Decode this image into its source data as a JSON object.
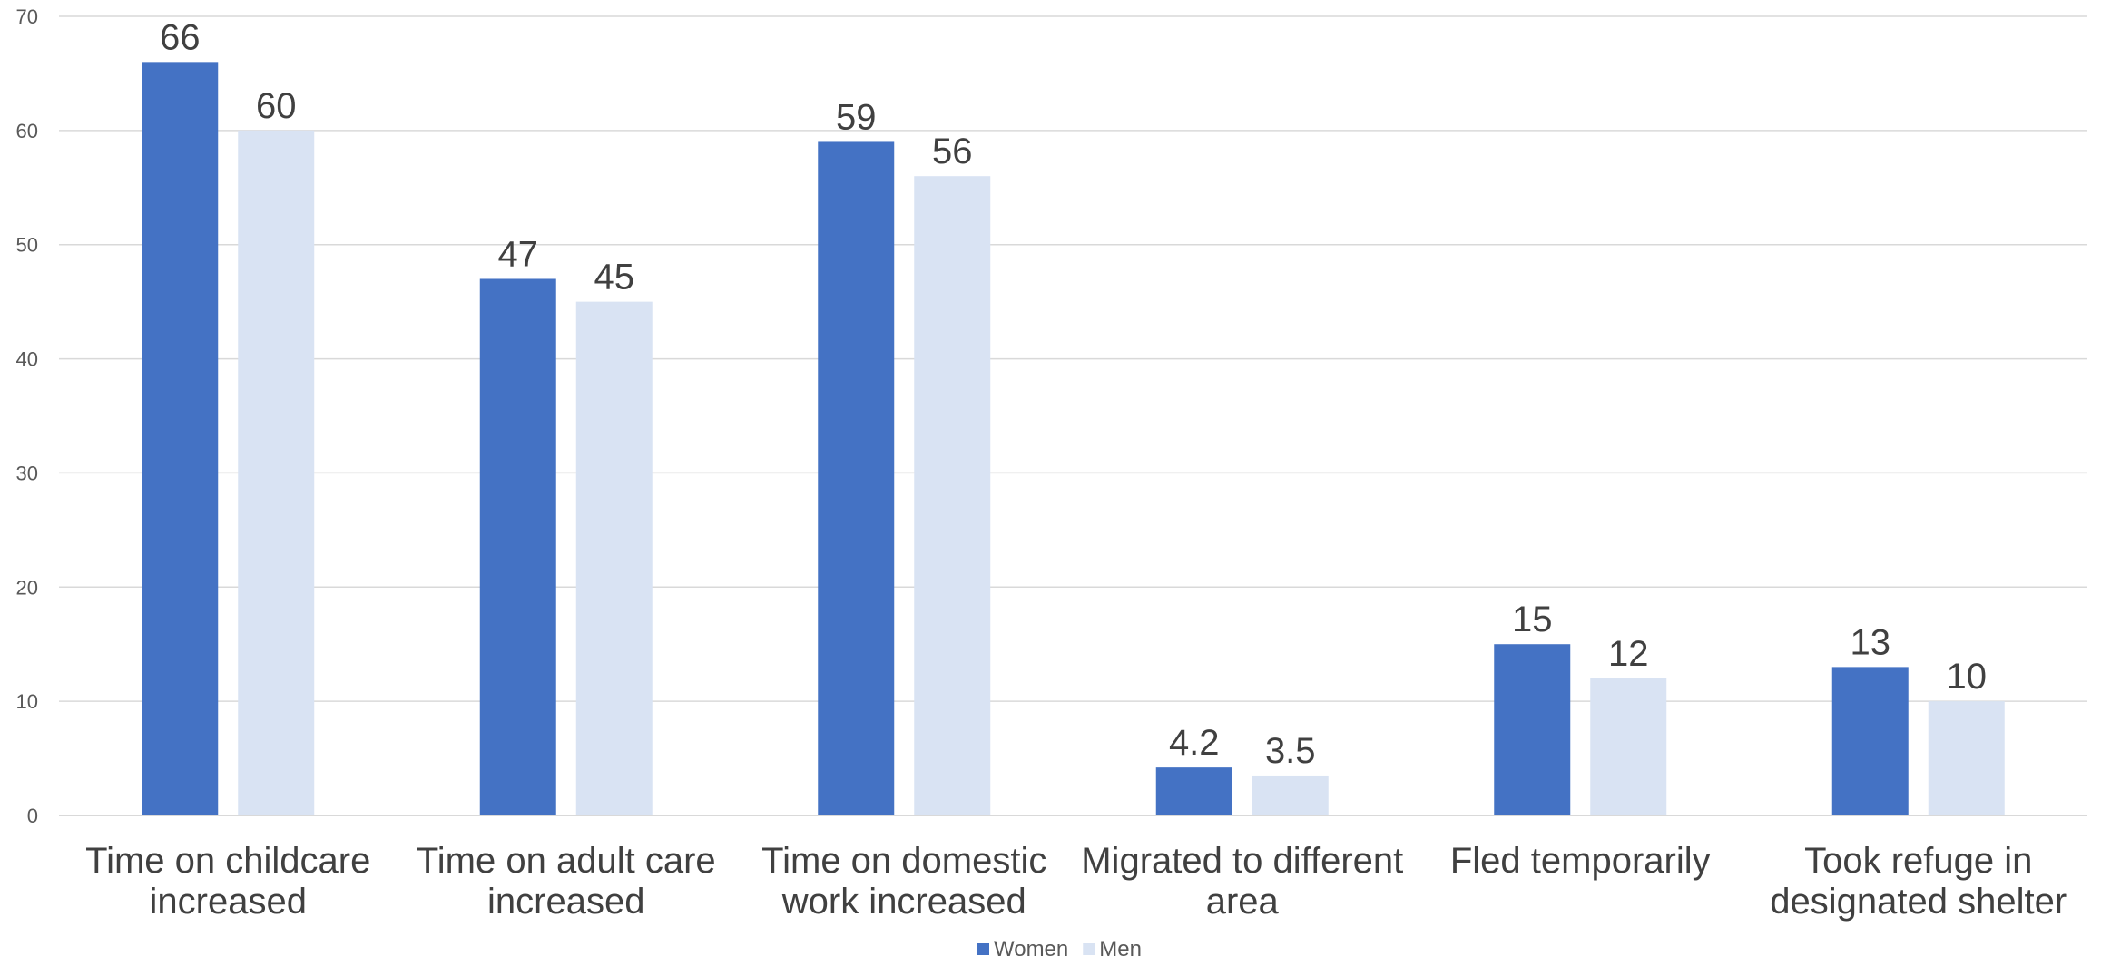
{
  "chart_data": {
    "type": "bar",
    "categories": [
      [
        "Time on childcare",
        "increased"
      ],
      [
        "Time on adult care",
        "increased"
      ],
      [
        "Time on domestic",
        "work increased"
      ],
      [
        "Migrated to different",
        "area"
      ],
      [
        "Fled temporarily"
      ],
      [
        "Took refuge in",
        "designated shelter"
      ]
    ],
    "series": [
      {
        "name": "Women",
        "color": "#4472C4",
        "values": [
          66,
          47,
          59,
          4.2,
          15,
          13
        ],
        "labels": [
          "66",
          "47",
          "59",
          "4.2",
          "15",
          "13"
        ]
      },
      {
        "name": "Men",
        "color": "#D9E3F3",
        "values": [
          60,
          45,
          56,
          3.5,
          12,
          10
        ],
        "labels": [
          "60",
          "45",
          "56",
          "3.5",
          "12",
          "10"
        ]
      }
    ],
    "ylim": [
      0,
      70
    ],
    "yticks": [
      0,
      10,
      20,
      30,
      40,
      50,
      60,
      70
    ],
    "grid": true,
    "legend_position": "bottom-center",
    "gridline_color": "#D9D9D9"
  }
}
